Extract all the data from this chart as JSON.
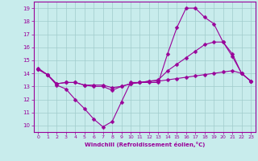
{
  "xlabel": "Windchill (Refroidissement éolien,°C)",
  "xlim": [
    -0.5,
    23.5
  ],
  "ylim": [
    9.5,
    19.5
  ],
  "yticks": [
    10,
    11,
    12,
    13,
    14,
    15,
    16,
    17,
    18,
    19
  ],
  "xticks": [
    0,
    1,
    2,
    3,
    4,
    5,
    6,
    7,
    8,
    9,
    10,
    11,
    12,
    13,
    14,
    15,
    16,
    17,
    18,
    19,
    20,
    21,
    22,
    23
  ],
  "background_color": "#c8ecec",
  "grid_color": "#a0cccc",
  "line_color": "#990099",
  "lines": [
    {
      "x": [
        0,
        1,
        2,
        3,
        4,
        5,
        6,
        7,
        8,
        9,
        10,
        11,
        12,
        13,
        14,
        15,
        16,
        17,
        18,
        19,
        20,
        21,
        22,
        23
      ],
      "y": [
        14.4,
        13.9,
        13.1,
        12.8,
        12.0,
        11.3,
        10.5,
        9.9,
        10.3,
        11.8,
        13.3,
        13.3,
        13.3,
        13.3,
        15.5,
        17.5,
        19.0,
        19.0,
        18.3,
        17.8,
        16.4,
        15.3,
        14.0,
        13.4
      ]
    },
    {
      "x": [
        0,
        1,
        2,
        3,
        4,
        5,
        6,
        7,
        8,
        9,
        10,
        11,
        12,
        13,
        14,
        15,
        16,
        17,
        18,
        19,
        20,
        21,
        22,
        23
      ],
      "y": [
        14.3,
        13.9,
        13.2,
        13.3,
        13.3,
        13.1,
        13.0,
        13.0,
        12.7,
        13.0,
        13.2,
        13.3,
        13.4,
        13.5,
        14.2,
        14.7,
        15.2,
        15.7,
        16.2,
        16.4,
        16.4,
        15.5,
        14.0,
        13.4
      ]
    },
    {
      "x": [
        0,
        1,
        2,
        3,
        4,
        5,
        6,
        7,
        8,
        9,
        10,
        11,
        12,
        13,
        14,
        15,
        16,
        17,
        18,
        19,
        20,
        21,
        22,
        23
      ],
      "y": [
        14.3,
        13.9,
        13.2,
        13.3,
        13.3,
        13.1,
        13.1,
        13.1,
        12.9,
        13.0,
        13.2,
        13.3,
        13.4,
        13.4,
        13.5,
        13.6,
        13.7,
        13.8,
        13.9,
        14.0,
        14.1,
        14.2,
        14.0,
        13.4
      ]
    }
  ]
}
